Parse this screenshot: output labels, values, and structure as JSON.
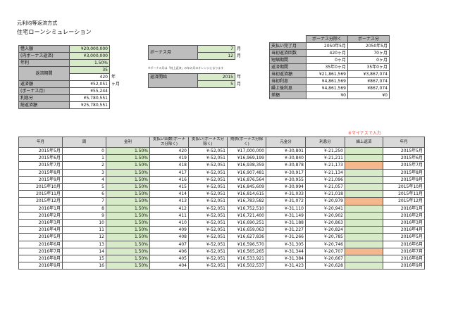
{
  "titles": {
    "line1": "元利均等返済方式",
    "line2": "住宅ローンシミュレーション"
  },
  "left": {
    "rows": [
      {
        "label": "借入額",
        "value": "¥20,000,000",
        "green": true
      },
      {
        "label": "(内ボーナス返済)",
        "value": "¥3,000,000",
        "green": true
      },
      {
        "label": "年利",
        "value": "1.50%",
        "green": true
      }
    ],
    "period_label": "返済期間",
    "period_years": "35",
    "period_months": "420",
    "unit_years": "年",
    "unit_months": "ヶ月",
    "rows2": [
      {
        "label": "返済額",
        "value": "¥52,051"
      },
      {
        "label": "(ボーナス月)",
        "value": "¥55,244"
      },
      {
        "label": "利息分",
        "value": "¥5,780,551"
      },
      {
        "label": "総返済額",
        "value": "¥25,780,551"
      }
    ]
  },
  "mid": {
    "bonus_label": "ボーナス月",
    "bonus_1": "7",
    "bonus_2": "12",
    "unit": "月",
    "note": "※ボーナス月は「純上返済」の年の月のオレンジになります",
    "start_label": "返済開始",
    "start_year": "2015",
    "start_month": "5",
    "unit_year": "年",
    "unit_month": "月"
  },
  "right": {
    "headers": [
      "ボーナス分除く",
      "ボーナス分"
    ],
    "rows": [
      {
        "label": "支払い完了月",
        "a": "2050年5月",
        "b": "2050年5月"
      },
      {
        "label": "当初返済回数",
        "a": "420ヶ月",
        "b": "70ヶ月"
      },
      {
        "label": "短縮期間",
        "a": "0ヶ月",
        "b": "0ヶ月"
      },
      {
        "label": "返済期間",
        "a": "35年0ヶ月",
        "b": "35年0ヶ月"
      },
      {
        "label": "当初返済額",
        "a": "¥21,861,569",
        "b": "¥3,867,074"
      },
      {
        "label": "当初利息",
        "a": "¥4,861,569",
        "b": "¥867,074"
      },
      {
        "label": "繰上後利息",
        "a": "¥4,861,569",
        "b": "¥867,074"
      },
      {
        "label": "差額",
        "a": "¥0",
        "b": "¥0"
      }
    ]
  },
  "sched": {
    "note": "※マイナスで入力",
    "headers": [
      "年月",
      "周",
      "金利",
      "支払い回数(ボーナス分除く)",
      "支払い(ボーナス分除く)",
      "残債(ボーナス分除く)",
      "元金分",
      "利息分",
      "繰上返済",
      "年月"
    ],
    "rows": [
      [
        "2015年5月",
        "0",
        "1.50%",
        "420",
        "¥-52,051",
        "¥17,000,000",
        "¥-30,801",
        "¥-21,250",
        "",
        "2015年5月"
      ],
      [
        "2015年6月",
        "1",
        "1.50%",
        "419",
        "¥-52,051",
        "¥16,969,199",
        "¥-30,840",
        "¥-21,211",
        "",
        "2015年6月"
      ],
      [
        "2015年7月",
        "2",
        "1.50%",
        "418",
        "¥-52,051",
        "¥16,938,359",
        "¥-30,878",
        "¥-21,173",
        "",
        "2015年7月"
      ],
      [
        "2015年8月",
        "3",
        "1.50%",
        "417",
        "¥-52,051",
        "¥16,907,481",
        "¥-30,917",
        "¥-21,134",
        "",
        "2015年8月"
      ],
      [
        "2015年9月",
        "4",
        "1.50%",
        "416",
        "¥-52,051",
        "¥16,876,564",
        "¥-30,955",
        "¥-21,096",
        "",
        "2015年9月"
      ],
      [
        "2015年10月",
        "5",
        "1.50%",
        "415",
        "¥-52,051",
        "¥16,845,609",
        "¥-30,994",
        "¥-21,057",
        "",
        "2015年10月"
      ],
      [
        "2015年11月",
        "6",
        "1.50%",
        "414",
        "¥-52,051",
        "¥16,814,615",
        "¥-31,033",
        "¥-21,018",
        "",
        "2015年11月"
      ],
      [
        "2015年12月",
        "7",
        "1.50%",
        "413",
        "¥-52,051",
        "¥16,783,582",
        "¥-31,072",
        "¥-20,979",
        "",
        "2015年12月"
      ],
      [
        "2016年1月",
        "8",
        "1.50%",
        "412",
        "¥-52,051",
        "¥16,752,510",
        "¥-31,110",
        "¥-20,941",
        "",
        "2016年1月"
      ],
      [
        "2016年2月",
        "9",
        "1.50%",
        "411",
        "¥-52,051",
        "¥16,721,400",
        "¥-31,149",
        "¥-20,902",
        "",
        "2016年2月"
      ],
      [
        "2016年3月",
        "10",
        "1.50%",
        "410",
        "¥-52,051",
        "¥16,690,251",
        "¥-31,188",
        "¥-20,863",
        "",
        "2016年3月"
      ],
      [
        "2016年4月",
        "11",
        "1.50%",
        "409",
        "¥-52,051",
        "¥16,659,063",
        "¥-31,227",
        "¥-20,824",
        "",
        "2016年4月"
      ],
      [
        "2016年5月",
        "12",
        "1.50%",
        "408",
        "¥-52,051",
        "¥16,627,836",
        "¥-31,266",
        "¥-20,785",
        "",
        "2016年5月"
      ],
      [
        "2016年6月",
        "13",
        "1.50%",
        "407",
        "¥-52,051",
        "¥16,596,570",
        "¥-31,305",
        "¥-20,746",
        "",
        "2016年6月"
      ],
      [
        "2016年7月",
        "14",
        "1.50%",
        "406",
        "¥-52,051",
        "¥16,565,265",
        "¥-31,344",
        "¥-20,707",
        "",
        "2016年7月"
      ],
      [
        "2016年8月",
        "15",
        "1.50%",
        "405",
        "¥-52,051",
        "¥16,533,921",
        "¥-31,384",
        "¥-20,667",
        "",
        "2016年8月"
      ],
      [
        "2016年9月",
        "16",
        "1.50%",
        "404",
        "¥-52,051",
        "¥16,502,537",
        "¥-31,423",
        "¥-20,628",
        "",
        "2016年9月"
      ]
    ],
    "peach_rows": [
      2,
      7,
      14
    ]
  }
}
